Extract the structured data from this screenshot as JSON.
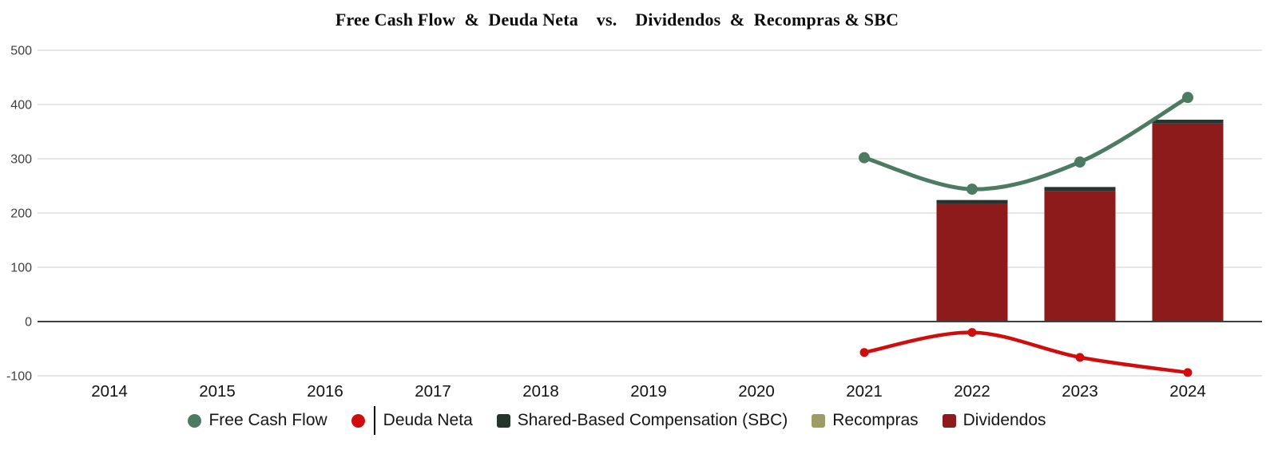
{
  "title": "Free Cash Flow  &  Deuda Neta    vs.    Dividendos  &  Recompras & SBC",
  "colors": {
    "fcf": "#4d7a62",
    "deuda_neta": "#d00d0d",
    "sbc": "#25342c",
    "recompras": "#9c9d64",
    "dividendos": "#8e1b1b",
    "gridline": "#d8d8d8",
    "zero_line": "#404040",
    "axis_text": "#3f3f3f",
    "x_label_text": "#121212",
    "legend_text": "#161616"
  },
  "chart_data": {
    "type": "combo (line + stacked bar)",
    "x_categories": [
      "2014",
      "2015",
      "2016",
      "2017",
      "2018",
      "2019",
      "2020",
      "2021",
      "2022",
      "2023",
      "2024"
    ],
    "y_axis": {
      "min": -100,
      "max": 500,
      "tick_step": 100,
      "ticks": [
        500,
        400,
        300,
        200,
        100,
        0,
        -100
      ]
    },
    "grid": true,
    "legend_position": "bottom",
    "series": [
      {
        "name": "Free Cash Flow",
        "type": "line",
        "marker": "circle",
        "color_key": "fcf",
        "values": [
          null,
          null,
          null,
          null,
          null,
          null,
          null,
          302,
          244,
          294,
          413
        ]
      },
      {
        "name": "Deuda Neta",
        "type": "line",
        "marker": "circle",
        "color_key": "deuda_neta",
        "values": [
          null,
          null,
          null,
          null,
          null,
          null,
          null,
          -57,
          -20,
          -66,
          -94
        ]
      },
      {
        "name": "Dividendos",
        "type": "bar",
        "stack_order": 0,
        "color_key": "dividendos",
        "values": [
          null,
          null,
          null,
          null,
          null,
          null,
          null,
          null,
          217,
          241,
          365
        ]
      },
      {
        "name": "Recompras",
        "type": "bar",
        "stack_order": 1,
        "color_key": "recompras",
        "values": [
          null,
          null,
          null,
          null,
          null,
          null,
          null,
          null,
          0,
          0,
          0
        ]
      },
      {
        "name": "Shared-Based Compensation (SBC)",
        "type": "bar",
        "stack_order": 2,
        "color_key": "sbc",
        "values": [
          null,
          null,
          null,
          null,
          null,
          null,
          null,
          null,
          7,
          7,
          7
        ]
      }
    ]
  },
  "legend": {
    "items": [
      {
        "label": "Free Cash Flow",
        "marker": "circle",
        "color_key": "fcf"
      },
      {
        "label": "Deuda Neta",
        "marker": "circle",
        "color_key": "deuda_neta"
      },
      {
        "label": "Shared-Based Compensation (SBC)",
        "marker": "square",
        "color_key": "sbc"
      },
      {
        "label": "Recompras",
        "marker": "square",
        "color_key": "recompras"
      },
      {
        "label": "Dividendos",
        "marker": "square",
        "color_key": "dividendos"
      }
    ]
  }
}
